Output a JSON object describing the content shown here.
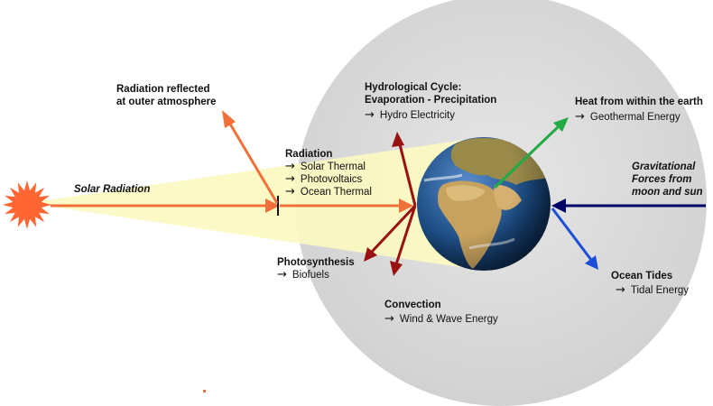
{
  "colors": {
    "atmosphere": "#d9d9d9",
    "beam": "#fbf9c0",
    "sun": "#ff6633",
    "orange_arrow": "#f0703a",
    "darkred_arrow": "#991111",
    "green_arrow": "#22aa44",
    "navy_arrow": "#000066",
    "blue_arrow": "#1b4fd8",
    "ocean": "#1d4f86",
    "land": "#9a8a4a",
    "desert": "#d7b06a"
  },
  "arrow_glyph": "→",
  "labels": {
    "solar_radiation": "Solar Radiation",
    "reflected": [
      "Radiation reflected",
      "at outer atmosphere"
    ],
    "radiation": {
      "title": "Radiation",
      "items": [
        "Solar Thermal",
        "Photovoltaics",
        "Ocean Thermal"
      ]
    },
    "hydro": {
      "title": [
        "Hydrological Cycle:",
        "Evaporation - Precipitation"
      ],
      "item": "Hydro Electricity"
    },
    "geothermal": {
      "title": "Heat from within the earth",
      "item": "Geothermal Energy"
    },
    "gravitational": [
      "Gravitational",
      "Forces from",
      "moon and sun"
    ],
    "photosynthesis": {
      "title": "Photosynthesis",
      "item": "Biofuels"
    },
    "convection": {
      "title": "Convection",
      "item": "Wind & Wave Energy"
    },
    "tides": {
      "title": "Ocean Tides",
      "item": "Tidal Energy"
    }
  }
}
